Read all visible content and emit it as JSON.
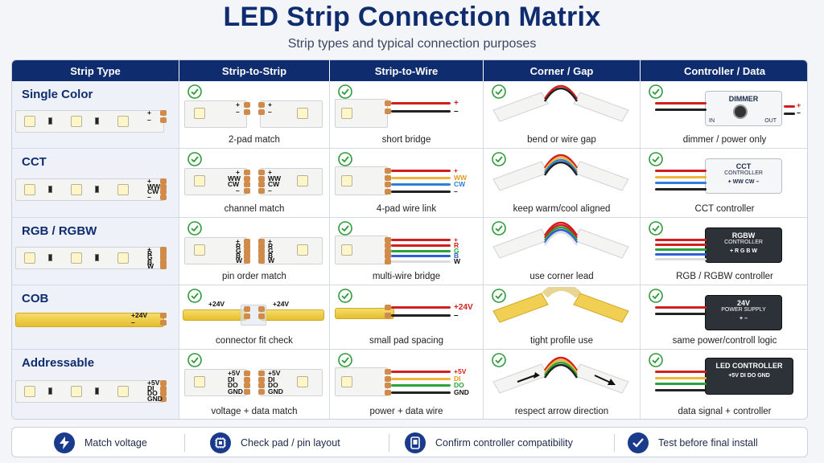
{
  "header": {
    "title": "LED Strip Connection Matrix",
    "subtitle": "Strip types and typical connection purposes"
  },
  "columns": [
    "Strip Type",
    "Strip-to-Strip",
    "Strip-to-Wire",
    "Corner / Gap",
    "Controller / Data"
  ],
  "rows": [
    {
      "type": "Single Color",
      "pins": [
        "+",
        "–"
      ],
      "captions": [
        "2-pad match",
        "short bridge",
        "bend or wire gap",
        "dimmer / power only"
      ],
      "wire_labels": [
        "+",
        "–"
      ],
      "controller": {
        "title": "DIMMER",
        "pins_in": "IN",
        "pins_out": "OUT",
        "out_labels": [
          "+",
          "–"
        ]
      }
    },
    {
      "type": "CCT",
      "pins": [
        "+",
        "WW",
        "CW",
        "–"
      ],
      "captions": [
        "channel match",
        "4-pad wire link",
        "keep warm/cool aligned",
        "CCT controller"
      ],
      "wire_labels": [
        "+",
        "WW",
        "CW",
        "–"
      ],
      "controller": {
        "title": "CCT",
        "subtitle": "CONTROLLER",
        "pins": "+ WW CW –"
      }
    },
    {
      "type": "RGB / RGBW",
      "pins": [
        "+",
        "R",
        "G",
        "B",
        "W"
      ],
      "captions": [
        "pin order match",
        "multi-wire bridge",
        "use corner lead",
        "RGB / RGBW controller"
      ],
      "wire_labels": [
        "+",
        "R",
        "G",
        "B",
        "W"
      ],
      "controller": {
        "title": "RGBW",
        "subtitle": "CONTROLLER",
        "pins": "+ R G B W"
      }
    },
    {
      "type": "COB",
      "pins": [
        "+24V",
        "–"
      ],
      "captions": [
        "connector fit check",
        "small pad spacing",
        "tight profile use",
        "same power/controll logic"
      ],
      "wire_labels": [
        "+24V",
        "–"
      ],
      "controller": {
        "title": "24V",
        "subtitle": "POWER SUPPLY",
        "pins": "+  –"
      }
    },
    {
      "type": "Addressable",
      "pins": [
        "+5V",
        "DI",
        "DO",
        "GND"
      ],
      "captions": [
        "voltage + data match",
        "power + data wire",
        "respect arrow direction",
        "data signal + controller"
      ],
      "wire_labels": [
        "+5V",
        "DI",
        "DO",
        "GND"
      ],
      "controller": {
        "title": "LED CONTROLLER",
        "pins": "+5V  DI  DO  GND"
      }
    }
  ],
  "legend": [
    {
      "icon": "lightning-icon",
      "label": "Match voltage"
    },
    {
      "icon": "chip-icon",
      "label": "Check pad / pin layout"
    },
    {
      "icon": "controller-icon",
      "label": "Confirm controller compatibility"
    },
    {
      "icon": "checkmark-icon",
      "label": "Test before final install"
    }
  ],
  "colors": {
    "header_bg": "#0f2c6e",
    "check_green": "#2f9a3a",
    "wire_red": "#d11f1f",
    "wire_black": "#222222",
    "wire_warm": "#f0b43a",
    "wire_cool": "#2f7fd6",
    "wire_green": "#2aa33a",
    "wire_blue": "#2f5fd6",
    "wire_white": "#dddddd"
  }
}
